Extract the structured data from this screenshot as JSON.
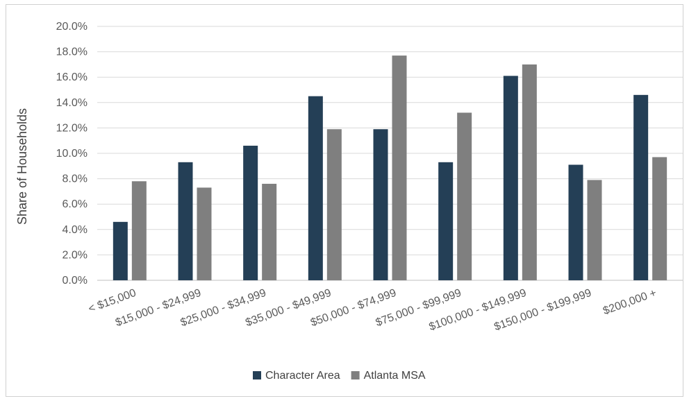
{
  "chart_data": {
    "type": "bar",
    "title": "",
    "xlabel": "",
    "ylabel": "Share of Households",
    "ylim": [
      0,
      20
    ],
    "yticks": [
      "0.0%",
      "2.0%",
      "4.0%",
      "6.0%",
      "8.0%",
      "10.0%",
      "12.0%",
      "14.0%",
      "16.0%",
      "18.0%",
      "20.0%"
    ],
    "grid": true,
    "legend_position": "bottom",
    "categories": [
      "< $15,000",
      "$15,000 - $24,999",
      "$25,000 - $34,999",
      "$35,000 - $49,999",
      "$50,000 - $74,999",
      "$75,000 - $99,999",
      "$100,000 - $149,999",
      "$150,000 - $199,999",
      "$200,000 +"
    ],
    "series": [
      {
        "name": "Character Area",
        "color": "#243f56",
        "values": [
          4.6,
          9.3,
          10.6,
          14.5,
          11.9,
          9.3,
          16.1,
          9.1,
          14.6
        ]
      },
      {
        "name": "Atlanta MSA",
        "color": "#7f7f7f",
        "values": [
          7.8,
          7.3,
          7.6,
          11.9,
          17.7,
          13.2,
          17.0,
          7.9,
          9.7
        ]
      }
    ]
  }
}
